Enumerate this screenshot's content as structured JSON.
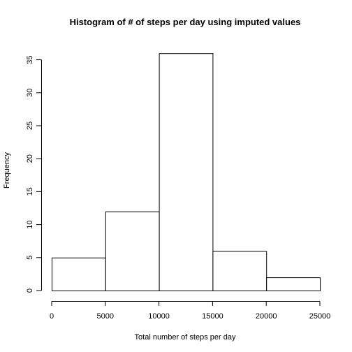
{
  "chart_data": {
    "type": "bar",
    "title": "Histogram of # of steps per day using imputed values",
    "xlabel": "Total number of steps per day",
    "ylabel": "Frequency",
    "bins": [
      {
        "start": 0,
        "end": 5000,
        "count": 5
      },
      {
        "start": 5000,
        "end": 10000,
        "count": 12
      },
      {
        "start": 10000,
        "end": 15000,
        "count": 36
      },
      {
        "start": 15000,
        "end": 20000,
        "count": 6
      },
      {
        "start": 20000,
        "end": 25000,
        "count": 2
      }
    ],
    "xlim": [
      0,
      25000
    ],
    "ylim": [
      0,
      36
    ],
    "x_ticks": [
      0,
      5000,
      10000,
      15000,
      20000,
      25000
    ],
    "x_tick_labels": [
      "0",
      "5000",
      "10000",
      "15000",
      "20000",
      "25000"
    ],
    "y_ticks": [
      0,
      5,
      10,
      15,
      20,
      25,
      30,
      35
    ],
    "y_tick_labels": [
      "0",
      "5",
      "10",
      "15",
      "20",
      "25",
      "30",
      "35"
    ],
    "grid": false,
    "legend": "none",
    "colors": {
      "bar_fill": "#ffffff",
      "bar_stroke": "#000000",
      "axis": "#000000",
      "background": "#ffffff"
    }
  }
}
